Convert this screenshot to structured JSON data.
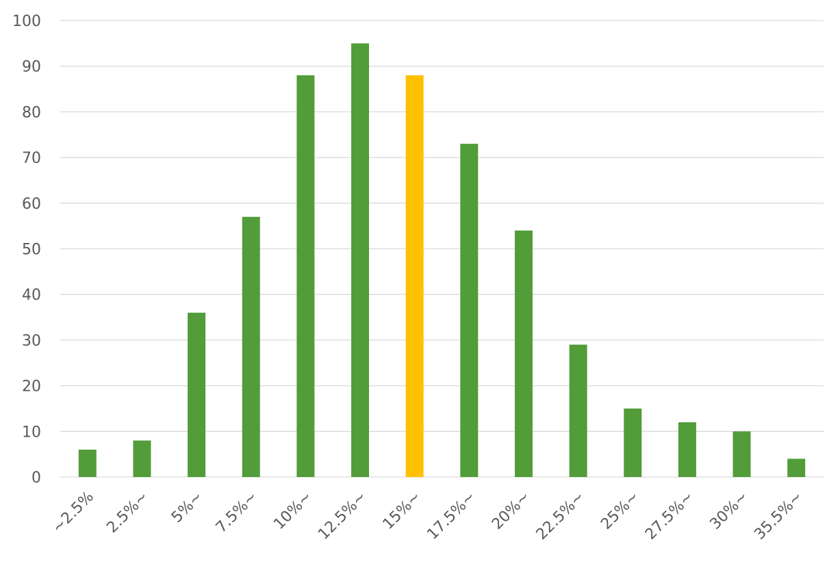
{
  "chart_data": {
    "type": "bar",
    "title": "",
    "xlabel": "",
    "ylabel": "",
    "categories": [
      "~2.5%",
      "2.5%~",
      "5%~",
      "7.5%~",
      "10%~",
      "12.5%~",
      "15%~",
      "17.5%~",
      "20%~",
      "22.5%~",
      "25%~",
      "27.5%~",
      "30%~",
      "35.5%~"
    ],
    "values": [
      6,
      8,
      36,
      57,
      88,
      95,
      88,
      73,
      54,
      29,
      15,
      12,
      10,
      4
    ],
    "highlight_index": 6,
    "colors": {
      "bar": "#529c3a",
      "highlight": "#ffc000",
      "grid": "#d9d9d9",
      "text": "#595959"
    },
    "ylim": [
      0,
      100
    ],
    "yticks": [
      "0",
      "10",
      "20",
      "30",
      "40",
      "50",
      "60",
      "70",
      "80",
      "90",
      "100"
    ],
    "grid": true,
    "legend": "none"
  }
}
